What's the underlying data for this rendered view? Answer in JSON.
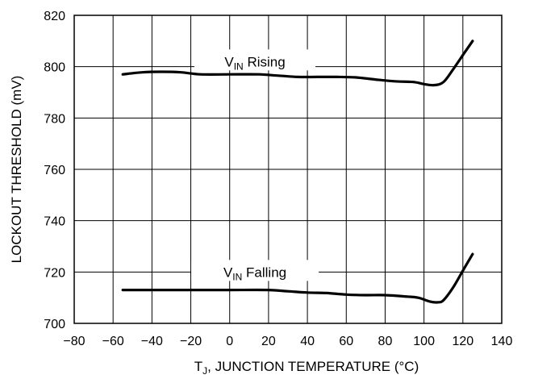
{
  "chart_data": {
    "type": "line",
    "xlabel": {
      "main": "T",
      "sub": "J",
      "rest": ", JUNCTION TEMPERATURE (°C)"
    },
    "ylabel": "LOCKOUT THRESHOLD (mV)",
    "xlim": [
      -80,
      140
    ],
    "ylim": [
      700,
      820
    ],
    "x_ticks": [
      -80,
      -60,
      -40,
      -20,
      0,
      20,
      40,
      60,
      80,
      100,
      120,
      140
    ],
    "y_ticks": [
      700,
      720,
      740,
      760,
      780,
      800,
      820
    ],
    "x_tick_labels": [
      "−80",
      "−60",
      "−40",
      "−20",
      "0",
      "20",
      "40",
      "60",
      "80",
      "100",
      "120",
      "140"
    ],
    "y_tick_labels": [
      "700",
      "720",
      "740",
      "760",
      "780",
      "800",
      "820"
    ],
    "grid": true,
    "series": [
      {
        "name": {
          "main": "V",
          "sub": "IN",
          "rest": " Rising"
        },
        "points": [
          [
            -55,
            797
          ],
          [
            -45,
            797.8
          ],
          [
            -35,
            798
          ],
          [
            -25,
            797.8
          ],
          [
            -15,
            797
          ],
          [
            0,
            797
          ],
          [
            15,
            797
          ],
          [
            25,
            796.5
          ],
          [
            35,
            796
          ],
          [
            45,
            796
          ],
          [
            55,
            796
          ],
          [
            65,
            795.8
          ],
          [
            75,
            795
          ],
          [
            85,
            794.3
          ],
          [
            95,
            794
          ],
          [
            100,
            793.2
          ],
          [
            105,
            792.8
          ],
          [
            110,
            794
          ],
          [
            115,
            799
          ],
          [
            120,
            804.5
          ],
          [
            125,
            810
          ]
        ]
      },
      {
        "name": {
          "main": "V",
          "sub": "IN",
          "rest": " Falling"
        },
        "points": [
          [
            -55,
            713
          ],
          [
            -40,
            713
          ],
          [
            -20,
            713
          ],
          [
            0,
            713
          ],
          [
            20,
            713
          ],
          [
            30,
            712.5
          ],
          [
            40,
            712
          ],
          [
            50,
            711.8
          ],
          [
            60,
            711.2
          ],
          [
            70,
            711
          ],
          [
            80,
            711
          ],
          [
            90,
            710.5
          ],
          [
            97,
            710
          ],
          [
            103,
            708.5
          ],
          [
            107,
            708.2
          ],
          [
            110,
            709
          ],
          [
            115,
            714
          ],
          [
            120,
            720.5
          ],
          [
            125,
            727
          ]
        ]
      }
    ]
  },
  "colors": {
    "line": "#000000",
    "grid": "#000000",
    "background": "#ffffff"
  }
}
